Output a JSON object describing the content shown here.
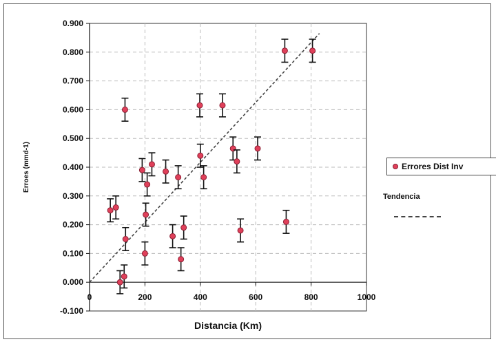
{
  "chart_data": {
    "type": "scatter",
    "xlabel": "Distancia (Km)",
    "ylabel": "Erroes (mmd-1)",
    "xlim": [
      0,
      1000
    ],
    "ylim": [
      -0.1,
      0.9
    ],
    "x_ticks": [
      "0",
      "200",
      "400",
      "600",
      "800",
      "1000"
    ],
    "y_ticks": [
      "-0.100",
      "0.000",
      "0.100",
      "0.200",
      "0.300",
      "0.400",
      "0.500",
      "0.600",
      "0.700",
      "0.800",
      "0.900"
    ],
    "grid": true,
    "legend_position": "right",
    "series": [
      {
        "name": "Errores Dist Inv",
        "color": "#e0405a",
        "error": 0.04,
        "points": [
          {
            "x": 75,
            "y": 0.25
          },
          {
            "x": 95,
            "y": 0.26
          },
          {
            "x": 110,
            "y": 0.0
          },
          {
            "x": 125,
            "y": 0.02
          },
          {
            "x": 128,
            "y": 0.6
          },
          {
            "x": 130,
            "y": 0.15
          },
          {
            "x": 190,
            "y": 0.39
          },
          {
            "x": 200,
            "y": 0.1
          },
          {
            "x": 203,
            "y": 0.235
          },
          {
            "x": 208,
            "y": 0.34
          },
          {
            "x": 225,
            "y": 0.41
          },
          {
            "x": 275,
            "y": 0.385
          },
          {
            "x": 300,
            "y": 0.16
          },
          {
            "x": 320,
            "y": 0.365
          },
          {
            "x": 330,
            "y": 0.08
          },
          {
            "x": 340,
            "y": 0.19
          },
          {
            "x": 398,
            "y": 0.615
          },
          {
            "x": 400,
            "y": 0.44
          },
          {
            "x": 412,
            "y": 0.365
          },
          {
            "x": 480,
            "y": 0.615
          },
          {
            "x": 518,
            "y": 0.465
          },
          {
            "x": 532,
            "y": 0.42
          },
          {
            "x": 545,
            "y": 0.18
          },
          {
            "x": 607,
            "y": 0.465
          },
          {
            "x": 705,
            "y": 0.805
          },
          {
            "x": 710,
            "y": 0.21
          },
          {
            "x": 805,
            "y": 0.805
          }
        ]
      }
    ],
    "trend": {
      "name": "Tendencia",
      "x0": 0,
      "y0": 0.0,
      "x1": 830,
      "y1": 0.865
    }
  }
}
